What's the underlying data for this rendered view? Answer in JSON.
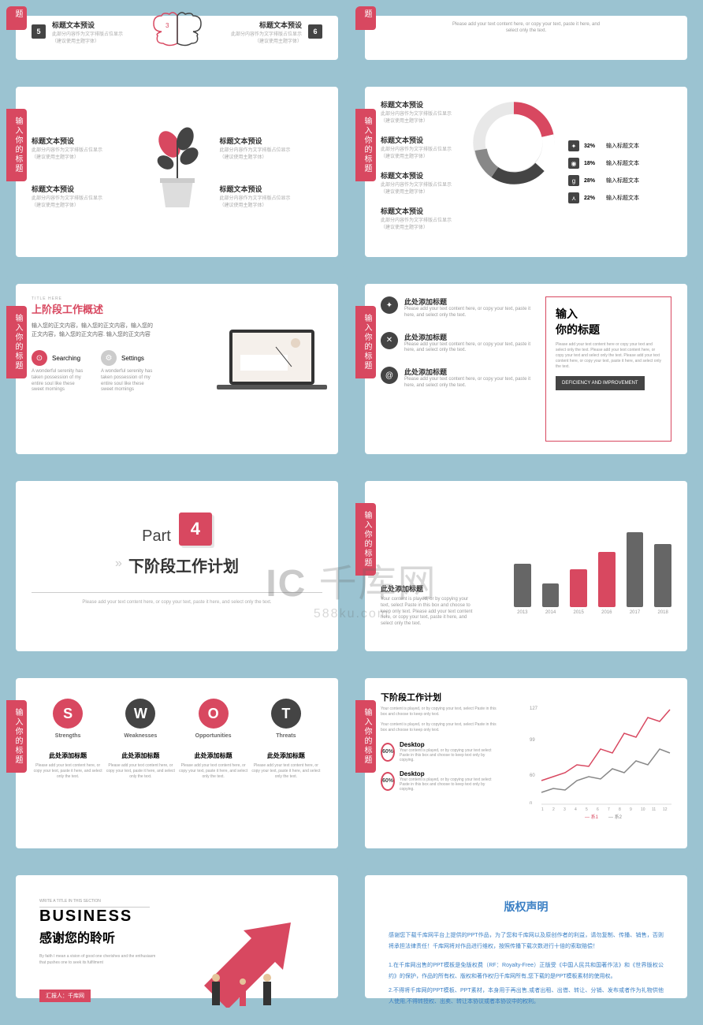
{
  "tab_text": "输入你的标题",
  "text_preset": "标题文本预设",
  "text_preset_desc": "此部分内容作为文字排版占位显示",
  "text_preset_desc2": "（建议使用主题字体）",
  "slide1": {
    "num1": "5",
    "num2": "6"
  },
  "slide2": {
    "add_text": "Please add your text content here, or copy your text, paste it here, and",
    "add_text2": "select only the text."
  },
  "slide4": {
    "seg": [
      {
        "val": "32%",
        "lbl": "输入标题文本",
        "ico": "✦"
      },
      {
        "val": "18%",
        "lbl": "输入标题文本",
        "ico": "◉"
      },
      {
        "val": "28%",
        "lbl": "输入标题文本",
        "ico": "g"
      },
      {
        "val": "22%",
        "lbl": "输入标题文本",
        "ico": "⋏"
      }
    ],
    "colors": [
      "#d84860",
      "#ffffff",
      "#444444",
      "#888888"
    ],
    "donut_bg": "#e8e8e8"
  },
  "slide5": {
    "tiny": "TITLE HERE",
    "title": "上阶段工作概述",
    "body": "输入您的正文内容，输入您的正文内容，输入您的正文内容，输入您的正文内容.  输入您的正文内容",
    "b1": "Searching",
    "b1d": "A wonderful serenity has taken possession of my entire soul like these sweet mornings",
    "b2": "Settings",
    "b2d": "A wonderful serenity has taken possession of my entire soul like these sweet mornings"
  },
  "slide6": {
    "item_title": "此处添加标题",
    "item_desc": "Please add your text content here, or copy your text, paste it here, and select only the text.",
    "box_title": "输入\n你的标题",
    "box_desc": "Please add your text content here or copy your text and select only the text. Please add your text content here, or copy your text and select only the text. Please add your text content here, or copy your text, paste it here, and select only the text.",
    "badge": "DEFICIENCY AND IMPROVEMENT"
  },
  "slide7": {
    "part": "Part",
    "num": "4",
    "title": "下阶段工作计划",
    "sub": "Please add your text content here, or copy your text, paste it here, and select only the text."
  },
  "slide8": {
    "title": "此处添加标题",
    "desc": "Your content is played, or by copying your text, select Paste in this box and choose to keep only text. Please add your text content here, or copy your text, paste it here, and select only the text.",
    "years": [
      "2013",
      "2014",
      "2015",
      "2016",
      "2017",
      "2018"
    ],
    "vals": [
      55,
      30,
      48,
      70,
      95,
      80
    ],
    "colors": [
      "#666",
      "#666",
      "#d84860",
      "#d84860",
      "#666",
      "#666"
    ]
  },
  "slide9": {
    "items": [
      {
        "l": "S",
        "c": "#d84860",
        "lbl": "Strengths"
      },
      {
        "l": "W",
        "c": "#444444",
        "lbl": "Weaknesses"
      },
      {
        "l": "O",
        "c": "#d84860",
        "lbl": "Opportunities"
      },
      {
        "l": "T",
        "c": "#444444",
        "lbl": "Threats"
      }
    ],
    "sub": "此处添加标题",
    "desc": "Please add your text content here, or copy your text, paste it here, and select only the text."
  },
  "slide10": {
    "title": "下阶段工作计划",
    "desc": "Your content is played, or by copying your text, select Paste in this box and choose to keep only text.",
    "desc2": "Your content is played, or by copying your text, select Paste in this box and choose to keep only text.",
    "desk": "Desktop",
    "desk_d": "Your content is played, or by copying your text select Paste in this box and choose to keep text only by copying.",
    "pct": "60%",
    "ylabels": [
      "127",
      "99",
      "60",
      "n"
    ],
    "xlabels": [
      "1",
      "2",
      "3",
      "4",
      "5",
      "6",
      "7",
      "8",
      "9",
      "10",
      "11",
      "12"
    ],
    "legend": [
      "系1",
      "系2"
    ],
    "line1_color": "#d84860",
    "line2_color": "#888888"
  },
  "slide11": {
    "tiny": "WRITE A TITLE IN THIS SECTION",
    "title": "BUSINESS",
    "sub": "感谢您的聆听",
    "desc": "By faith I mean a vision of good one cherishes and the enthusiasm that pushes one to seek its fulfilment",
    "foot": "汇报人：千库网"
  },
  "slide12": {
    "title": "版权声明",
    "p1": "感谢您下载千库网平台上提供的PPT作品，为了您和千库网以及原创作者的利益，请勿复制、传播、销售，否则将承担法律责任！千库网将对作品进行维权，按照传播下载次数进行十倍的索取赔偿！",
    "p2": "1.在千库网出售的PPT模板是免版权费（RF：Royalty-Free）正版受《中国人民共和国著作法》和《世界版权公约》的保护，作品的所有权、版权和著作权归千库网所有,您下载的是PPT模板素材的使用权。",
    "p3": "2.不得将千库网的PPT模板、PPT素材，本身用于再出售,或者出租、出借、转让、分销、发布或者作为礼物供他人使用,不得转授权、出卖、转让本协议或者本协议中的权利。"
  },
  "watermark": "千库网",
  "watermark_sub": "588ku.com"
}
